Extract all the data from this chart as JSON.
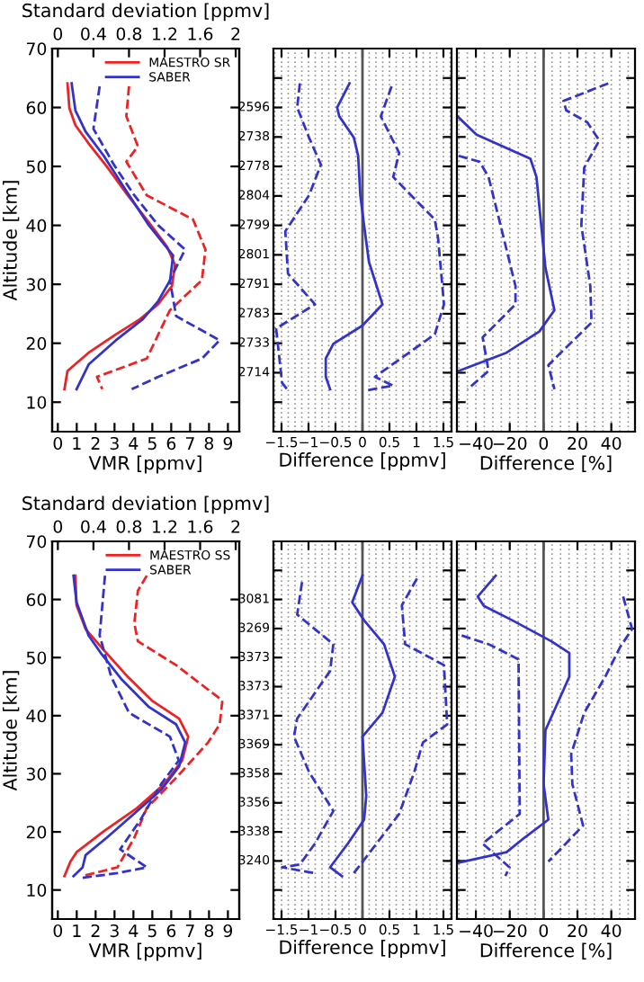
{
  "chart_data": [
    {
      "type": "line",
      "xlabel": "VMR [ppmv]",
      "ylabel": "Altitude [km]",
      "x2label": "Standard deviation [ppmv]",
      "xlim": [
        -0.3,
        9.6
      ],
      "xticks": [
        0,
        1,
        2,
        3,
        4,
        5,
        6,
        7,
        8,
        9
      ],
      "x2lim": [
        -0.064,
        2.04
      ],
      "x2ticks": [
        0,
        0.4,
        0.8,
        1.2,
        1.6,
        2
      ],
      "ylim": [
        5,
        70
      ],
      "yticks": [
        10,
        20,
        30,
        40,
        50,
        60,
        70
      ],
      "legend": "top right",
      "series": [
        {
          "name": "MAESTRO SR",
          "color": "#ee2222",
          "line_style": "solid",
          "x": [
            0.51,
            0.61,
            0.93,
            1.63,
            2.59,
            3.7,
            4.82,
            5.78,
            6.2,
            6.04,
            5.3,
            4.35,
            3.07,
            1.63,
            0.51,
            0.35
          ],
          "values": [
            64.1,
            59.9,
            57,
            53.9,
            50,
            45.1,
            40.5,
            36.4,
            33.3,
            29.7,
            26.6,
            24.1,
            21.5,
            18.4,
            15.3,
            12.2
          ]
        },
        {
          "name": "SABER",
          "color": "#3333cc",
          "line_style": "solid",
          "x": [
            0.73,
            0.93,
            1.47,
            2.43,
            3.55,
            4.82,
            6.1,
            5.94,
            5.3,
            4.5,
            3.07,
            1.63,
            0.99
          ],
          "values": [
            64.1,
            59.5,
            55.9,
            51.8,
            46.2,
            40,
            34.9,
            30.7,
            27.1,
            24.1,
            20.5,
            16.4,
            12.2
          ]
        },
        {
          "color": "#ee2222",
          "line_style": "dashed",
          "axis": "x2",
          "x": [
            0.8,
            0.77,
            0.9,
            0.77,
            1.0,
            1.52,
            1.66,
            1.62,
            1.26,
            1.13,
            1.0,
            0.44,
            0.5
          ],
          "values": [
            63.6,
            58.5,
            53.4,
            50.8,
            45.1,
            41,
            35.9,
            30.7,
            25.6,
            21.5,
            17.4,
            14.3,
            12.2
          ]
        },
        {
          "color": "#3333cc",
          "line_style": "dashed",
          "axis": "x2",
          "x": [
            0.47,
            0.4,
            0.63,
            0.86,
            1.13,
            1.43,
            1.26,
            1.33,
            1.82,
            1.62,
            1.13,
            0.83
          ],
          "values": [
            63.6,
            56.4,
            50.3,
            45.1,
            40,
            35.9,
            30.7,
            24.6,
            20.5,
            17.4,
            14.3,
            12.2
          ]
        }
      ]
    },
    {
      "type": "line",
      "xlabel": "Difference [ppmv]",
      "xlim": [
        -1.65,
        1.65
      ],
      "xticks": [
        {
          "value": -1.5,
          "label": "−1.5"
        },
        {
          "value": -1,
          "label": "−1"
        },
        {
          "value": -0.5,
          "label": "−0.5"
        },
        0,
        0.5,
        1,
        1.5
      ],
      "ylim": [
        5,
        70
      ],
      "yticks": [
        10,
        15,
        20,
        25,
        30,
        35,
        40,
        45,
        50,
        55,
        60,
        65
      ],
      "tick_labels": "x",
      "annotations": [
        "2596",
        "2738",
        "2778",
        "2804",
        "2799",
        "2801",
        "2791",
        "2783",
        "2733",
        "2714"
      ],
      "grid": "x",
      "ref_lines": [
        {
          "axis": "x",
          "value": 0,
          "color": "#555555"
        }
      ],
      "series": [
        {
          "color": "#3333cc",
          "line_style": "solid",
          "x": [
            -0.24,
            -0.47,
            -0.43,
            -0.16,
            -0.08,
            -0.04,
            0.03,
            0.12,
            0.37,
            0,
            -0.54,
            -0.68,
            -0.68,
            -0.6
          ],
          "values": [
            64.1,
            60,
            58.5,
            54.9,
            51.8,
            45.1,
            40,
            33.8,
            26.6,
            23,
            19.9,
            17.4,
            14.3,
            12.2
          ]
        },
        {
          "color": "#3333cc",
          "line_style": "dashed",
          "x": [
            -1.16,
            -1.21,
            -0.99,
            -0.77,
            -0.99,
            -1.43,
            -1.38,
            -0.88,
            -1.6,
            -1.49,
            -1.38
          ],
          "values": [
            64.1,
            60,
            54.9,
            50.3,
            45.1,
            39,
            31.8,
            26.6,
            22.5,
            13.3,
            12
          ]
        },
        {
          "color": "#3333cc",
          "line_style": "dashed",
          "x": [
            0.54,
            0.34,
            0.68,
            0.57,
            1.34,
            1.4,
            1.51,
            1.34,
            0.23,
            0.57,
            0.07
          ],
          "values": [
            63.6,
            58.5,
            52.3,
            48.2,
            41,
            37.9,
            26.6,
            21.5,
            14.3,
            12.8,
            12
          ]
        }
      ]
    },
    {
      "type": "line",
      "xlabel": "Difference [%]",
      "xlim": [
        -51.2,
        54
      ],
      "xticks": [
        {
          "value": -40,
          "label": "−40"
        },
        {
          "value": -20,
          "label": "−20"
        },
        0,
        20,
        40
      ],
      "ylim": [
        5,
        70
      ],
      "yticks": [
        10,
        15,
        20,
        25,
        30,
        35,
        40,
        45,
        50,
        55,
        60,
        65
      ],
      "tick_labels": "x",
      "grid": "x",
      "ref_lines": [
        {
          "axis": "x",
          "value": 0,
          "color": "#555555"
        }
      ],
      "series": [
        {
          "color": "#3333cc",
          "line_style": "solid",
          "x": [
            -50.9,
            -39.6,
            -7.8,
            -4.2,
            -1.4,
            1.1,
            6.4,
            -2.5,
            -21.9,
            -50.2
          ],
          "values": [
            58.5,
            55.4,
            51.3,
            48.2,
            40,
            32.8,
            25.6,
            22,
            18.4,
            15.3
          ]
        },
        {
          "color": "#3333cc",
          "line_style": "dashed",
          "x": [
            -50.2,
            -37.8,
            -32.5,
            -25.4,
            -16.6,
            -16.6,
            -36,
            -32.5,
            -44.9
          ],
          "values": [
            51.8,
            50.8,
            48.2,
            40,
            29.7,
            26.6,
            21,
            15.3,
            12.2
          ]
        },
        {
          "color": "#3333cc",
          "line_style": "dashed",
          "x": [
            38.2,
            11.7,
            13.4,
            25.8,
            32.9,
            24,
            22.3,
            27.6,
            28.3,
            2.8,
            6.4
          ],
          "values": [
            64.1,
            61.1,
            59.5,
            57.5,
            54.4,
            49.8,
            40,
            29.7,
            23.5,
            16.3,
            12.2
          ]
        }
      ]
    },
    {
      "type": "line",
      "xlabel": "VMR [ppmv]",
      "ylabel": "Altitude [km]",
      "x2label": "Standard deviation [ppmv]",
      "xlim": [
        -0.3,
        9.6
      ],
      "xticks": [
        0,
        1,
        2,
        3,
        4,
        5,
        6,
        7,
        8,
        9
      ],
      "x2lim": [
        -0.064,
        2.04
      ],
      "x2ticks": [
        0,
        0.4,
        0.8,
        1.2,
        1.6,
        2
      ],
      "ylim": [
        5,
        70
      ],
      "yticks": [
        10,
        20,
        30,
        40,
        50,
        60,
        70
      ],
      "legend": "top right",
      "series": [
        {
          "name": "MAESTRO SS",
          "color": "#ee2222",
          "line_style": "solid",
          "x": [
            0.93,
            0.99,
            1.47,
            2.43,
            3.7,
            4.98,
            6.42,
            6.9,
            6.58,
            5.62,
            4.19,
            2.43,
            0.99,
            0.67,
            0.35
          ],
          "values": [
            64.1,
            59,
            54.9,
            51.3,
            46.7,
            42.6,
            39.5,
            36.4,
            32.3,
            28.2,
            24.1,
            20.1,
            16.5,
            14.9,
            12.4
          ]
        },
        {
          "name": "SABER",
          "color": "#3333cc",
          "line_style": "solid",
          "x": [
            0.83,
            0.99,
            1.63,
            2.27,
            3.39,
            4.82,
            6.26,
            6.74,
            6.42,
            5.46,
            4.03,
            2.59,
            1.47,
            1.31,
            0.83
          ],
          "values": [
            64.1,
            59.5,
            53.8,
            50.8,
            46.2,
            41.5,
            38.5,
            35.4,
            31.3,
            27.2,
            23.1,
            19,
            16,
            13.9,
            12.4
          ]
        },
        {
          "color": "#ee2222",
          "line_style": "dashed",
          "axis": "x2",
          "x": [
            1.0,
            0.9,
            0.86,
            0.9,
            1.33,
            1.85,
            1.82,
            1.69,
            1.33,
            1.0,
            0.86,
            0.67,
            0.27
          ],
          "values": [
            64.1,
            61.5,
            55.9,
            52.8,
            48.7,
            42.6,
            38.5,
            35.4,
            29.3,
            24.1,
            19,
            13.9,
            12.4
          ]
        },
        {
          "color": "#3333cc",
          "line_style": "dashed",
          "axis": "x2",
          "x": [
            0.53,
            0.47,
            0.6,
            0.8,
            1.26,
            1.36,
            1.16,
            0.93,
            0.7,
            1.0,
            0.67,
            0.27
          ],
          "values": [
            64.1,
            53.8,
            46.7,
            40.5,
            36.4,
            32.3,
            28.2,
            22.1,
            17,
            13.9,
            12.9,
            12.1
          ]
        }
      ]
    },
    {
      "type": "line",
      "xlabel": "Difference [ppmv]",
      "xlim": [
        -1.65,
        1.65
      ],
      "xticks": [
        {
          "value": -1.5,
          "label": "−1.5"
        },
        {
          "value": -1,
          "label": "−1"
        },
        {
          "value": -0.5,
          "label": "−0.5"
        },
        0,
        0.5,
        1,
        1.5
      ],
      "ylim": [
        5,
        70
      ],
      "yticks": [
        10,
        15,
        20,
        25,
        30,
        35,
        40,
        45,
        50,
        55,
        60,
        65
      ],
      "tick_labels": "x",
      "annotations": [
        "3081",
        "3269",
        "3373",
        "3373",
        "3371",
        "3369",
        "3358",
        "3356",
        "3338",
        "3240"
      ],
      "grid": "x",
      "ref_lines": [
        {
          "axis": "x",
          "value": 0,
          "color": "#555555"
        }
      ],
      "series": [
        {
          "color": "#3333cc",
          "line_style": "solid",
          "x": [
            0,
            -0.19,
            0.03,
            0.4,
            0.6,
            0.37,
            0,
            0.07,
            0.03,
            -0.27,
            -0.6,
            -0.38
          ],
          "values": [
            64.1,
            59.5,
            56.4,
            52.3,
            46.7,
            40.5,
            36.4,
            26.2,
            22.1,
            18,
            13.9,
            12.4
          ]
        },
        {
          "color": "#3333cc",
          "line_style": "dashed",
          "x": [
            -1.12,
            -1.21,
            -0.54,
            -0.6,
            -1.21,
            -1.27,
            -0.99,
            -0.54,
            -0.88,
            -1.16,
            -1.49,
            -0.88
          ],
          "values": [
            63,
            57.4,
            52.3,
            47.7,
            39.5,
            36.4,
            30.3,
            23.6,
            18,
            14.4,
            13.9,
            12.9
          ]
        },
        {
          "color": "#3333cc",
          "line_style": "dashed",
          "x": [
            1.01,
            0.73,
            0.79,
            1.51,
            1.57,
            1.12,
            0.96,
            0.68,
            0.18,
            -0.16
          ],
          "values": [
            63.6,
            59,
            52.3,
            48.7,
            38.5,
            35.4,
            30.3,
            23.1,
            17,
            12.9
          ]
        }
      ]
    },
    {
      "type": "line",
      "xlabel": "Difference [%]",
      "xlim": [
        -51.2,
        54
      ],
      "xticks": [
        {
          "value": -40,
          "label": "−40"
        },
        {
          "value": -20,
          "label": "−20"
        },
        0,
        20,
        40
      ],
      "ylim": [
        5,
        70
      ],
      "yticks": [
        10,
        15,
        20,
        25,
        30,
        35,
        40,
        45,
        50,
        55,
        60,
        65
      ],
      "tick_labels": "x",
      "grid": "x",
      "ref_lines": [
        {
          "axis": "x",
          "value": 0,
          "color": "#555555"
        }
      ],
      "series": [
        {
          "color": "#3333cc",
          "line_style": "solid",
          "x": [
            -28.3,
            -38.9,
            -35.3,
            -18.4,
            4.6,
            15.2,
            15.2,
            1.1,
            0,
            2.8,
            -11.3,
            -21.9,
            -50.2
          ],
          "values": [
            64.1,
            60.5,
            58.9,
            56.4,
            52.8,
            50.8,
            46.7,
            37.5,
            28.2,
            22.1,
            19,
            16.5,
            14.7
          ]
        },
        {
          "color": "#3333cc",
          "line_style": "dashed",
          "x": [
            -48.4,
            -32.5,
            -14.8,
            -14.1,
            -36,
            -20.1,
            -22.6
          ],
          "values": [
            53.8,
            52.3,
            49.7,
            23.1,
            18,
            13.9,
            12.4
          ]
        },
        {
          "color": "#3333cc",
          "line_style": "dashed",
          "x": [
            47,
            52.3,
            45.2,
            36.4,
            24,
            16.3,
            17,
            23.3,
            9.9,
            2.8
          ],
          "values": [
            60.5,
            54.9,
            51.8,
            46.7,
            40.5,
            33.4,
            28.2,
            21.1,
            17,
            14.9
          ]
        }
      ]
    }
  ]
}
